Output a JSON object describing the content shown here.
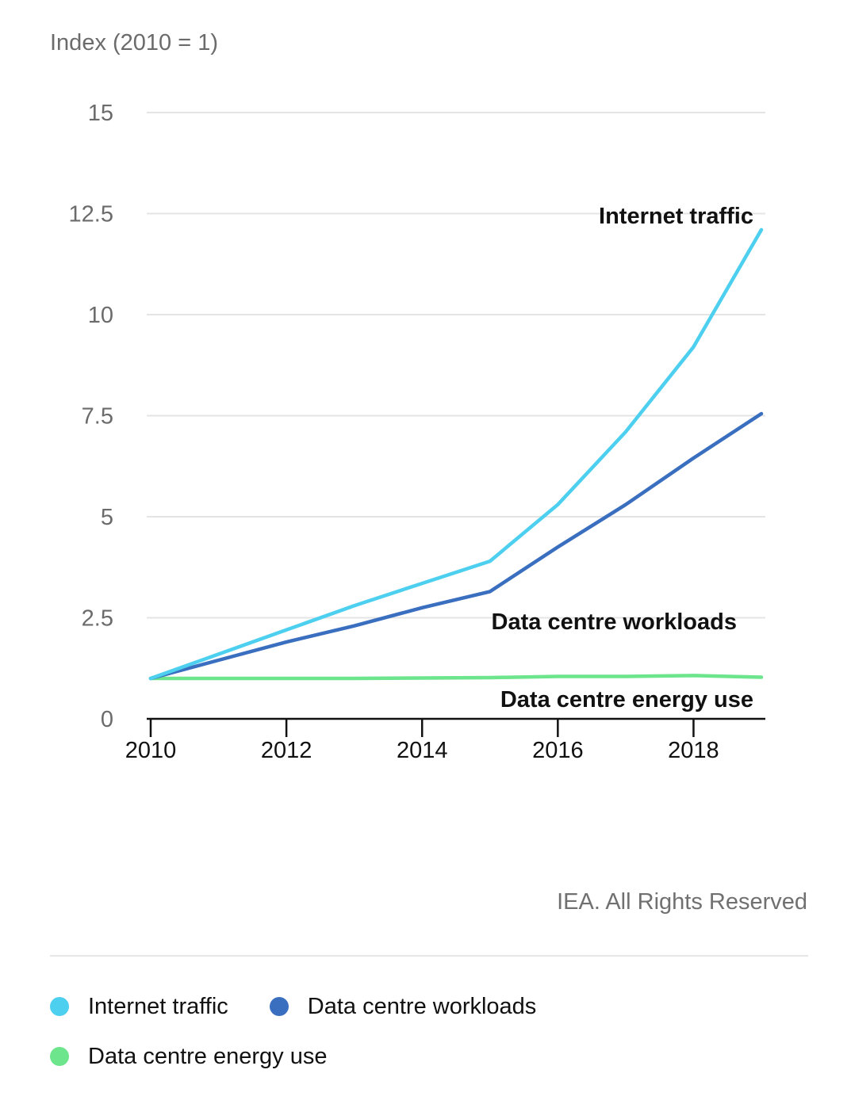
{
  "chart_data": {
    "type": "line",
    "ylabel": "Index (2010 = 1)",
    "x": [
      2010,
      2011,
      2012,
      2013,
      2014,
      2015,
      2016,
      2017,
      2018,
      2019
    ],
    "xticks": [
      "2010",
      "2012",
      "2014",
      "2016",
      "2018"
    ],
    "yticks": [
      "0",
      "2.5",
      "5",
      "7.5",
      "10",
      "12.5",
      "15"
    ],
    "ylim": [
      0,
      15
    ],
    "xlim": [
      2010,
      2019
    ],
    "grid": true,
    "series": [
      {
        "name": "Internet traffic",
        "color": "#4dcfef",
        "values": [
          1.0,
          1.6,
          2.2,
          2.8,
          3.35,
          3.9,
          5.3,
          7.1,
          9.2,
          12.1
        ]
      },
      {
        "name": "Data centre workloads",
        "color": "#3a6fc0",
        "values": [
          1.0,
          1.45,
          1.9,
          2.3,
          2.75,
          3.15,
          4.25,
          5.3,
          6.45,
          7.55
        ]
      },
      {
        "name": "Data centre energy use",
        "color": "#6ce58c",
        "values": [
          1.0,
          1.0,
          1.0,
          1.0,
          1.01,
          1.02,
          1.05,
          1.05,
          1.07,
          1.03
        ]
      }
    ],
    "annotations": [
      {
        "text": "Internet traffic",
        "series": "Internet traffic"
      },
      {
        "text": "Data centre workloads",
        "series": "Data centre workloads"
      },
      {
        "text": "Data centre energy use",
        "series": "Data centre energy use"
      }
    ]
  },
  "credit": "IEA. All Rights Reserved",
  "legend": [
    {
      "label": "Internet traffic",
      "color": "#4dcfef"
    },
    {
      "label": "Data centre workloads",
      "color": "#3a6fc0"
    },
    {
      "label": "Data centre energy use",
      "color": "#6ce58c"
    }
  ]
}
